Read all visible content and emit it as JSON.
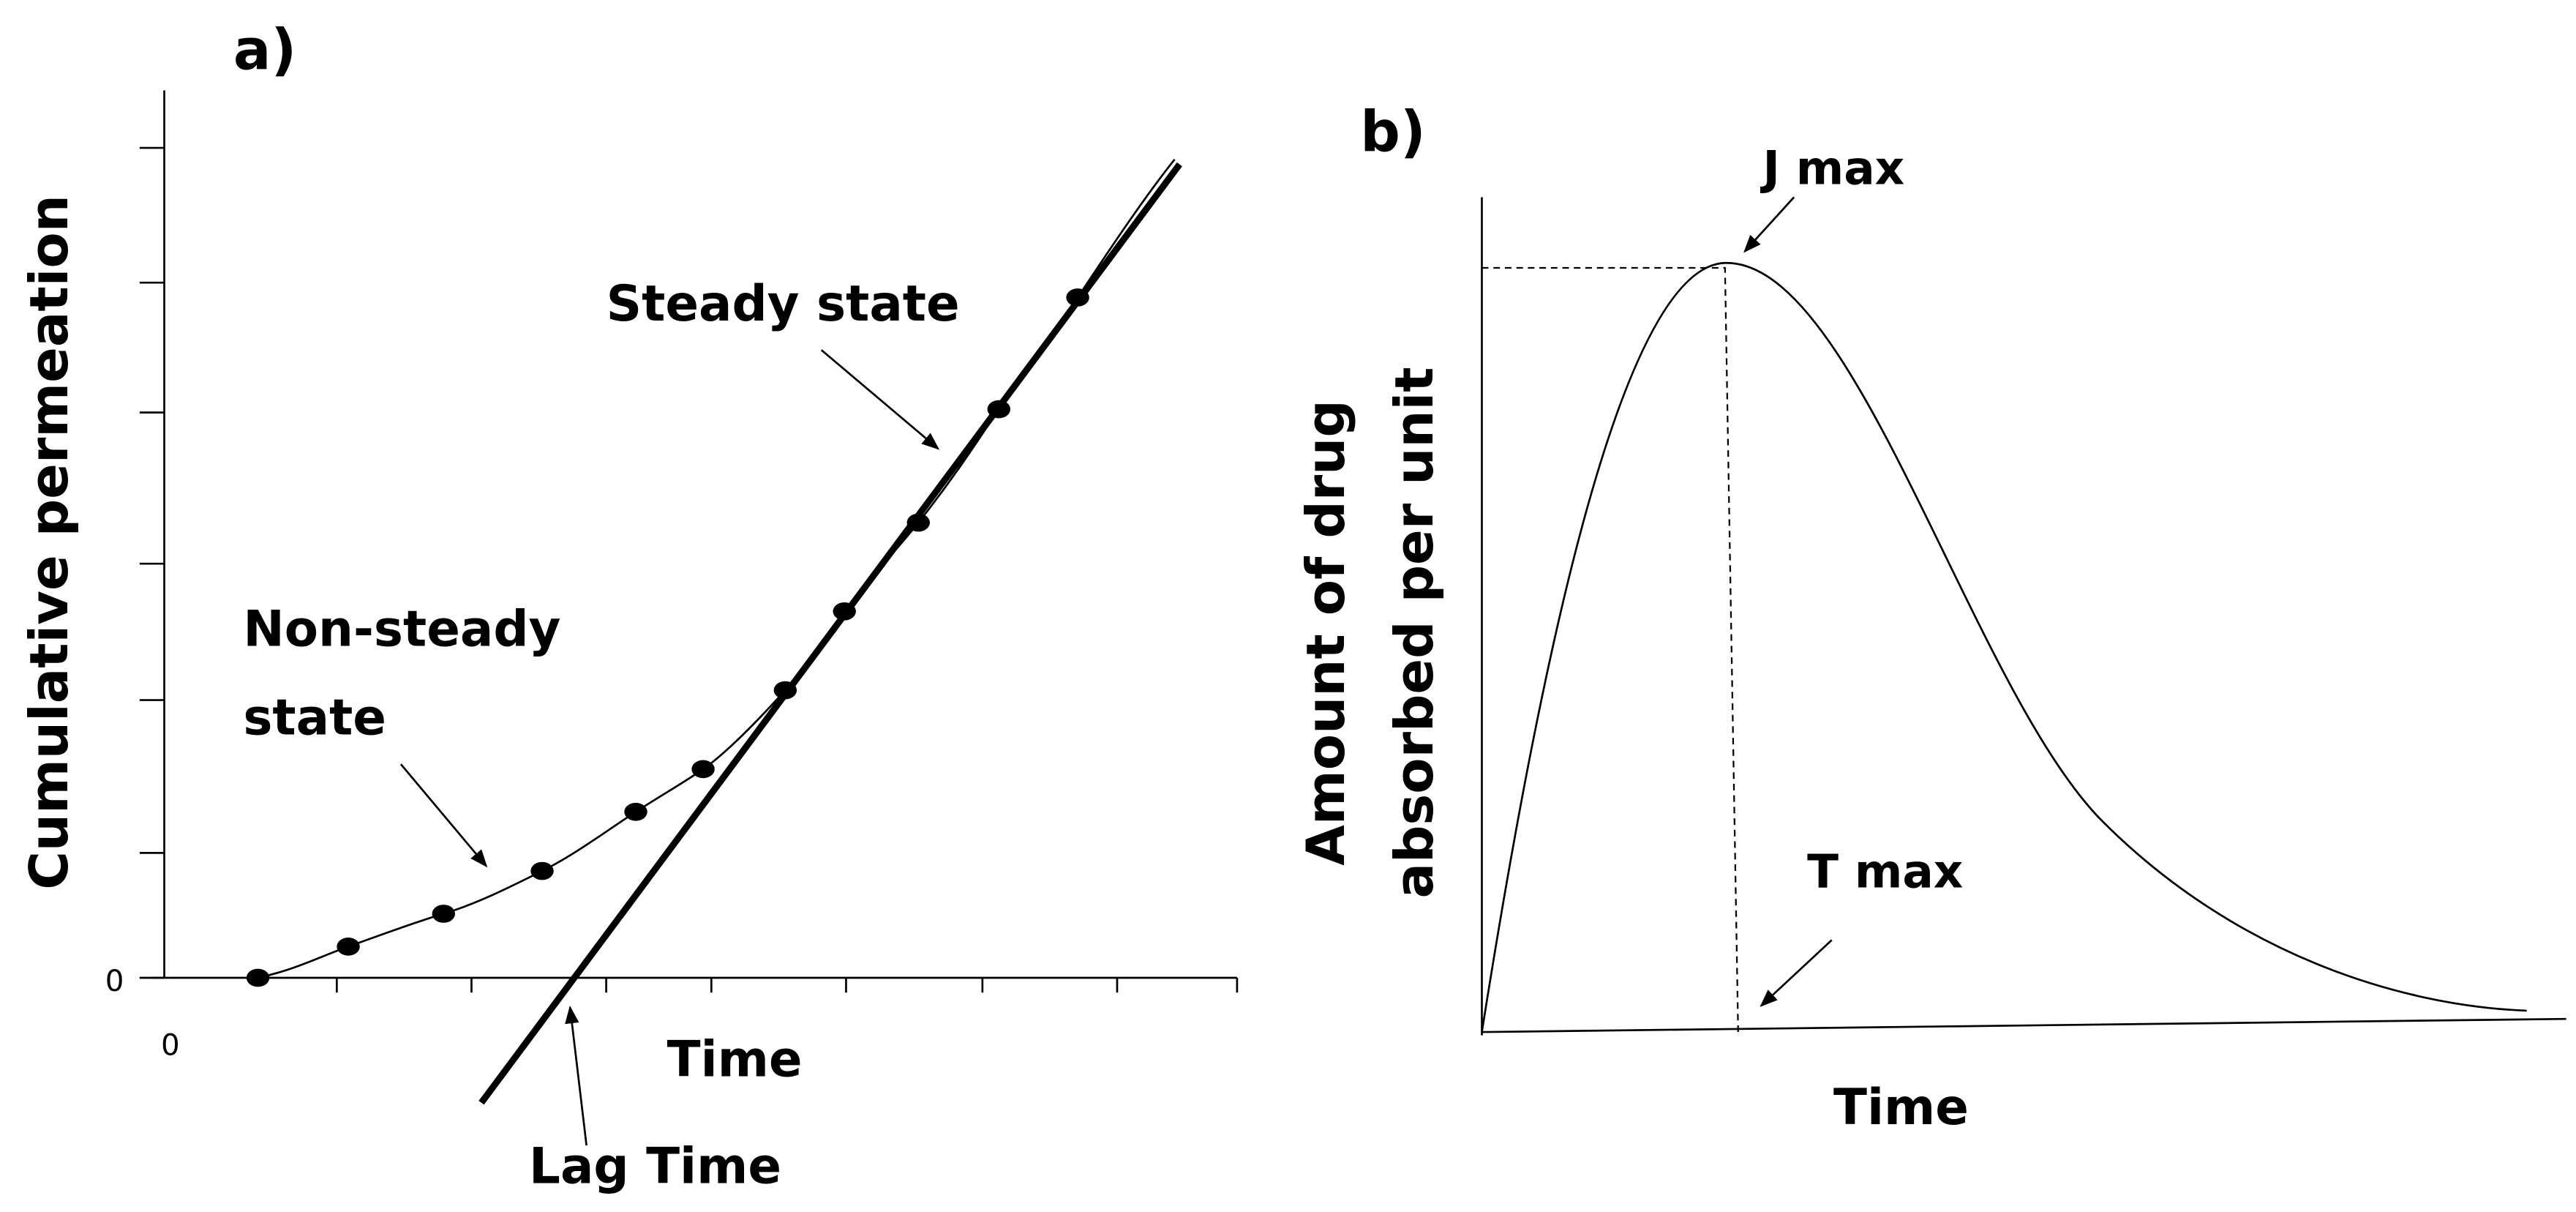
{
  "panel_a": {
    "label": "a)",
    "y_axis_label": "Cumulative permeation",
    "x_axis_label": "Time",
    "origin_y_label": "0",
    "origin_x_label": "0",
    "steady_label": "Steady state",
    "non_steady_label": [
      "Non-steady",
      "state"
    ],
    "lag_label": "Lag Time"
  },
  "panel_b": {
    "label": "b)",
    "y_axis_label": [
      "Amount of drug",
      "absorbed per unit"
    ],
    "x_axis_label": "Time",
    "peak_label": "J max",
    "time_label": "T max"
  }
}
